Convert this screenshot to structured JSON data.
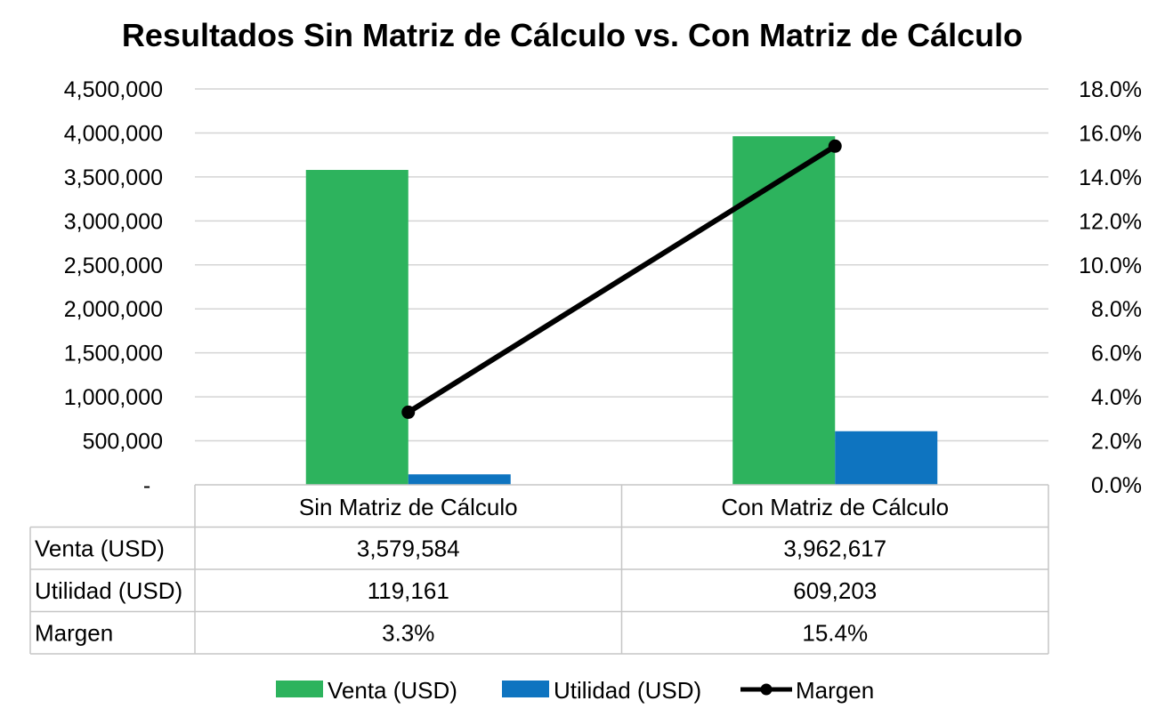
{
  "chart_data": {
    "type": "bar",
    "title": "Resultados Sin Matriz de Cálculo vs. Con Matriz de Cálculo",
    "categories": [
      "Sin Matriz de Cálculo",
      "Con Matriz de Cálculo"
    ],
    "series": [
      {
        "name": "Venta (USD)",
        "type": "bar",
        "axis": "left",
        "color": "#2db35d",
        "values": [
          3579584,
          3962617
        ]
      },
      {
        "name": "Utilidad (USD)",
        "type": "bar",
        "axis": "left",
        "color": "#0e74c0",
        "values": [
          119161,
          609203
        ]
      },
      {
        "name": "Margen",
        "type": "line",
        "axis": "right",
        "color": "#000000",
        "values": [
          0.033,
          0.154
        ]
      }
    ],
    "y_left": {
      "ylim": [
        0,
        4500000
      ],
      "ticks": [
        0,
        500000,
        1000000,
        1500000,
        2000000,
        2500000,
        3000000,
        3500000,
        4000000,
        4500000
      ],
      "tick_labels": [
        "-",
        "500,000",
        "1,000,000",
        "1,500,000",
        "2,000,000",
        "2,500,000",
        "3,000,000",
        "3,500,000",
        "4,000,000",
        "4,500,000"
      ]
    },
    "y_right": {
      "ylim": [
        0,
        0.18
      ],
      "ticks": [
        0,
        0.02,
        0.04,
        0.06,
        0.08,
        0.1,
        0.12,
        0.14,
        0.16,
        0.18
      ],
      "tick_labels": [
        "0.0%",
        "2.0%",
        "4.0%",
        "6.0%",
        "8.0%",
        "10.0%",
        "12.0%",
        "14.0%",
        "16.0%",
        "18.0%"
      ]
    },
    "data_table": {
      "rows": [
        {
          "label": "Venta (USD)",
          "cells": [
            "3,579,584",
            "3,962,617"
          ]
        },
        {
          "label": "Utilidad (USD)",
          "cells": [
            "119,161",
            "609,203"
          ]
        },
        {
          "label": "Margen",
          "cells": [
            "3.3%",
            "15.4%"
          ]
        }
      ]
    },
    "grid": true,
    "legend_position": "bottom"
  }
}
